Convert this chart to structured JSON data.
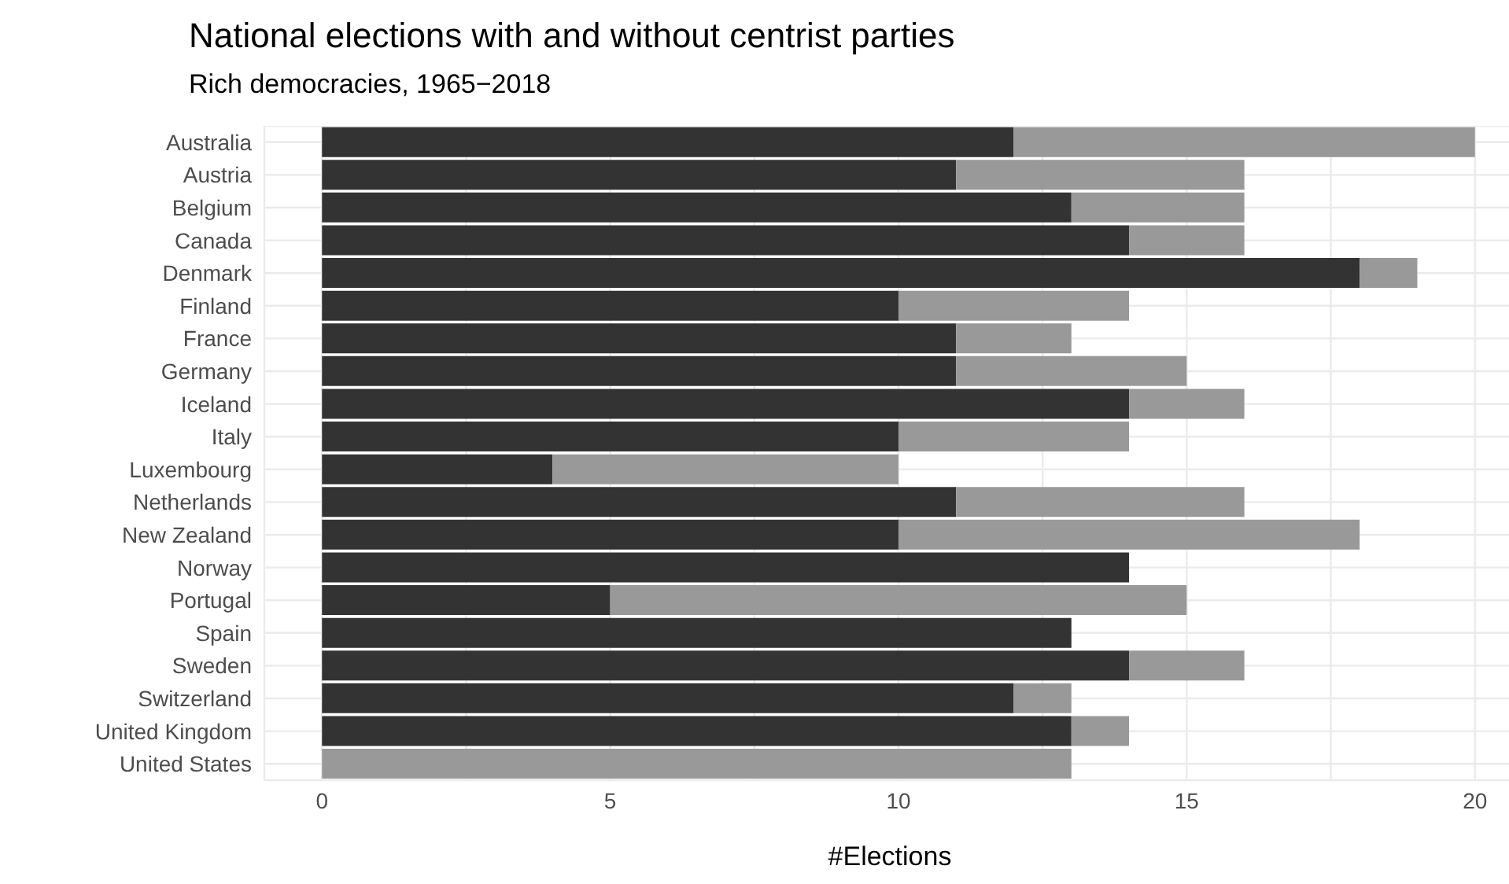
{
  "chart_data": {
    "type": "bar",
    "orientation": "horizontal",
    "stacked": true,
    "title": "National elections with and without centrist parties",
    "subtitle": "Rich democracies, 1965−2018",
    "xlabel": "#Elections",
    "categories": [
      "Australia",
      "Austria",
      "Belgium",
      "Canada",
      "Denmark",
      "Finland",
      "France",
      "Germany",
      "Iceland",
      "Italy",
      "Luxembourg",
      "Netherlands",
      "New Zealand",
      "Norway",
      "Portugal",
      "Spain",
      "Sweden",
      "Switzerland",
      "United Kingdom",
      "United States"
    ],
    "series": [
      {
        "color": "#333333",
        "values": [
          12,
          11,
          13,
          14,
          18,
          10,
          11,
          11,
          14,
          10,
          4,
          11,
          10,
          14,
          5,
          13,
          14,
          12,
          13,
          0
        ]
      },
      {
        "color": "#999999",
        "values": [
          8,
          5,
          3,
          2,
          1,
          4,
          2,
          4,
          2,
          4,
          6,
          5,
          8,
          0,
          10,
          0,
          2,
          1,
          1,
          13
        ]
      }
    ],
    "xlim": [
      -1,
      20.7
    ],
    "xticks": [
      0,
      {
        "value": 2.5,
        "label": null
      },
      5,
      {
        "value": 7.5,
        "label": null
      },
      10,
      {
        "value": 12.5,
        "label": null
      },
      15,
      {
        "value": 17.5,
        "label": null
      },
      20
    ],
    "grid": true,
    "legend": false
  }
}
